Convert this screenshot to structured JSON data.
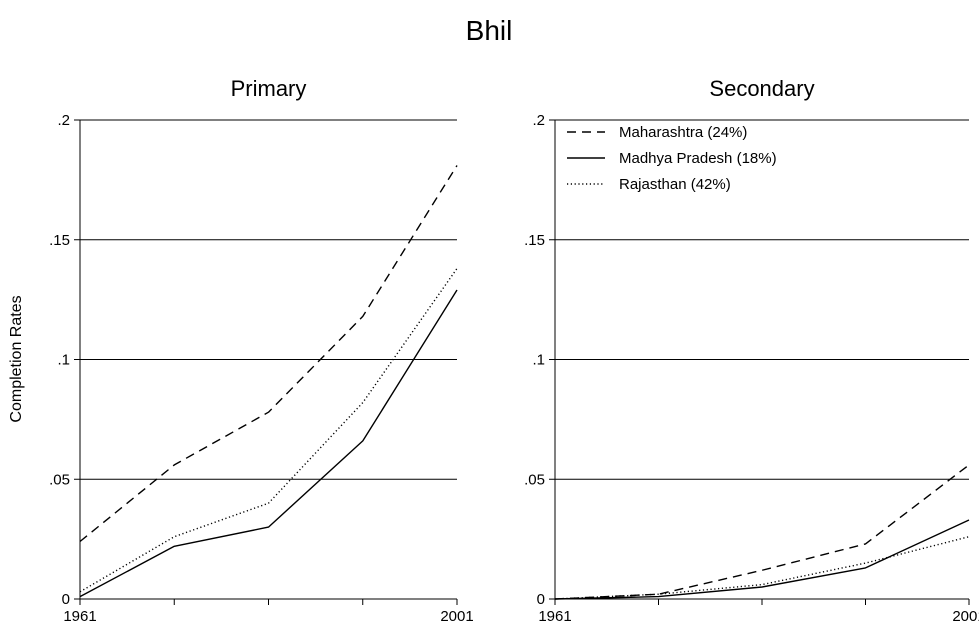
{
  "figure_title": "Bhil",
  "shared_ylabel": "Completion Rates",
  "chart_data": [
    {
      "type": "line",
      "title": "Primary",
      "xlabel": "",
      "ylabel": "Completion Rates",
      "x": [
        1961,
        1971,
        1981,
        1991,
        2001
      ],
      "x_tick_labels": [
        "1961",
        "2001"
      ],
      "y_ticks": [
        0,
        0.05,
        0.1,
        0.15,
        0.2
      ],
      "y_tick_labels": [
        "0",
        ".05",
        ".1",
        ".15",
        ".2"
      ],
      "xlim": [
        1961,
        2001
      ],
      "ylim": [
        0,
        0.2
      ],
      "grid": "horizontal",
      "legend": "none",
      "series": [
        {
          "name": "Maharashtra (24%)",
          "style": "dashed",
          "values": [
            0.024,
            0.056,
            0.078,
            0.118,
            0.181
          ]
        },
        {
          "name": "Madhya Pradesh (18%)",
          "style": "solid",
          "values": [
            0.001,
            0.022,
            0.03,
            0.066,
            0.129
          ]
        },
        {
          "name": "Rajasthan (42%)",
          "style": "dotted",
          "values": [
            0.003,
            0.026,
            0.04,
            0.082,
            0.138
          ]
        }
      ]
    },
    {
      "type": "line",
      "title": "Secondary",
      "xlabel": "",
      "ylabel": "",
      "x": [
        1961,
        1971,
        1981,
        1991,
        2001
      ],
      "x_tick_labels": [
        "1961",
        "2001"
      ],
      "y_ticks": [
        0,
        0.05,
        0.1,
        0.15,
        0.2
      ],
      "y_tick_labels": [
        "0",
        ".05",
        ".1",
        ".15",
        ".2"
      ],
      "xlim": [
        1961,
        2001
      ],
      "ylim": [
        0,
        0.2
      ],
      "grid": "horizontal",
      "legend": "top-left",
      "series": [
        {
          "name": "Maharashtra (24%)",
          "style": "dashed",
          "values": [
            0.0,
            0.002,
            0.012,
            0.023,
            0.056
          ]
        },
        {
          "name": "Madhya Pradesh (18%)",
          "style": "solid",
          "values": [
            0.0,
            0.001,
            0.005,
            0.013,
            0.033
          ]
        },
        {
          "name": "Rajasthan (42%)",
          "style": "dotted",
          "values": [
            0.0,
            0.002,
            0.006,
            0.015,
            0.026
          ]
        }
      ]
    }
  ]
}
